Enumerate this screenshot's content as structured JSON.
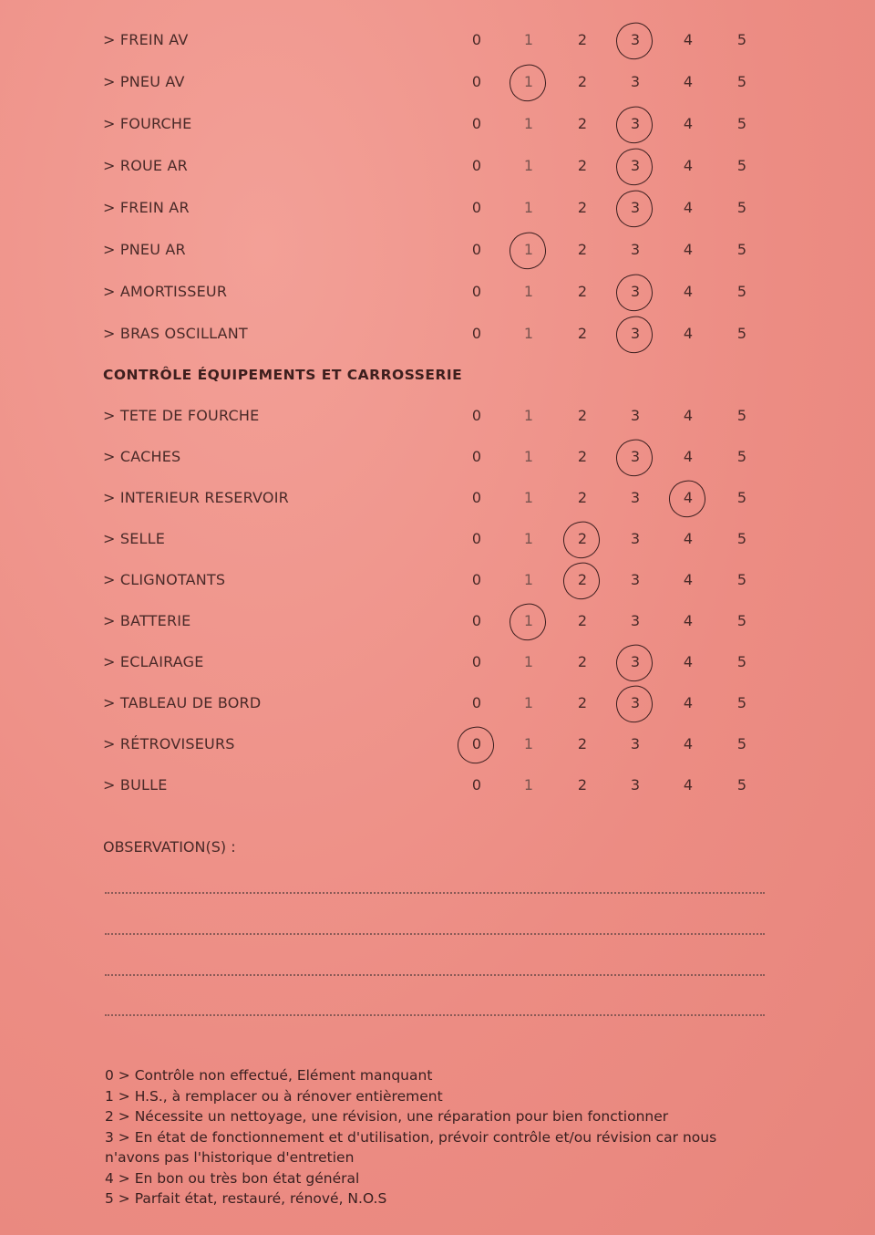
{
  "scale": [
    "0",
    "1",
    "2",
    "3",
    "4",
    "5"
  ],
  "section1": [
    {
      "label": "> FREIN AV",
      "selected": 3
    },
    {
      "label": "> PNEU AV",
      "selected": 1
    },
    {
      "label": "> FOURCHE",
      "selected": 3
    },
    {
      "label": "> ROUE AR",
      "selected": 3
    },
    {
      "label": "> FREIN AR",
      "selected": 3
    },
    {
      "label": "> PNEU AR",
      "selected": 1
    },
    {
      "label": "> AMORTISSEUR",
      "selected": 3
    },
    {
      "label": "> BRAS OSCILLANT",
      "selected": 3
    }
  ],
  "section2_title": "CONTRÔLE ÉQUIPEMENTS ET CARROSSERIE",
  "section2": [
    {
      "label": "> TETE DE FOURCHE",
      "selected": null
    },
    {
      "label": "> CACHES",
      "selected": 3
    },
    {
      "label": "> INTERIEUR RESERVOIR",
      "selected": 4
    },
    {
      "label": "> SELLE",
      "selected": 2
    },
    {
      "label": "> CLIGNOTANTS",
      "selected": 2
    },
    {
      "label": "> BATTERIE",
      "selected": 1
    },
    {
      "label": "> ECLAIRAGE",
      "selected": 3
    },
    {
      "label": "> TABLEAU DE BORD",
      "selected": 3
    },
    {
      "label": "> RÉTROVISEURS",
      "selected": 0
    },
    {
      "label": "> BULLE",
      "selected": null
    }
  ],
  "observations_label": "OBSERVATION(S) :",
  "legend": [
    "0 > Contrôle non effectué, Elément manquant",
    "1 > H.S., à remplacer ou à rénover entièrement",
    "2 > Nécessite un nettoyage, une révision, une réparation pour bien fonctionner",
    "3 > En état de fonctionnement et d'utilisation, prévoir contrôle et/ou révision car nous n'avons pas l'historique d'entretien",
    "4 > En bon ou très bon état général",
    "5 > Parfait état, restauré, rénové, N.O.S"
  ],
  "colors": {
    "paper": "#ee8f86",
    "ink": "#3a1e1e"
  }
}
